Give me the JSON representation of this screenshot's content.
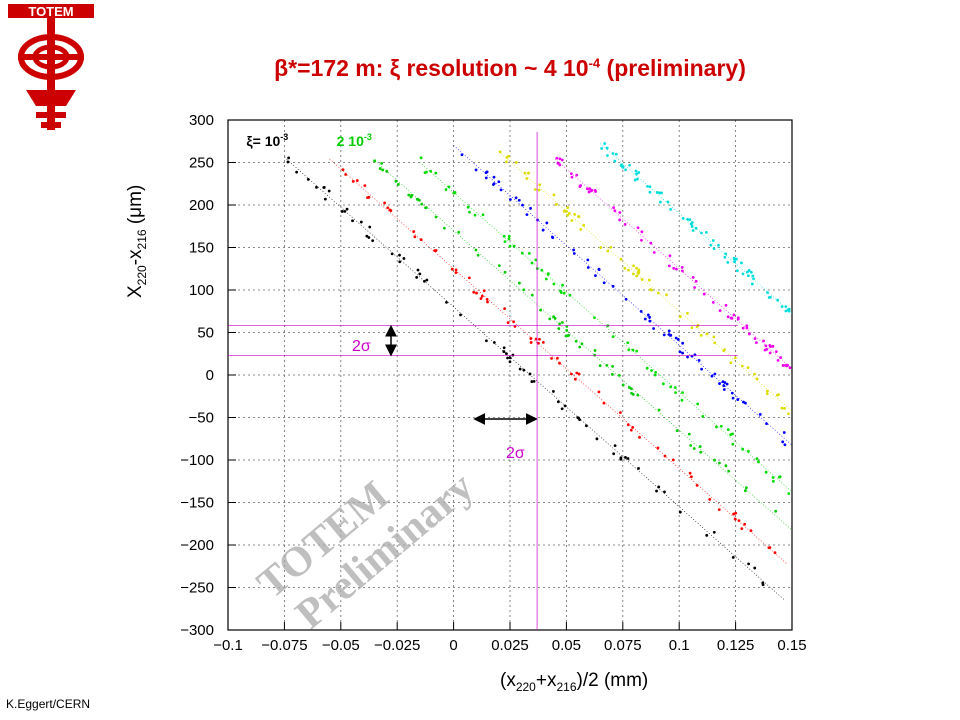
{
  "slide": {
    "title_pre": "β*=172 m: ξ resolution ~ 4 10",
    "title_exp": "-4",
    "title_post": " (preliminary)",
    "logo_text": "TOTEM",
    "credit": "K.Eggert/CERN"
  },
  "chart_data": {
    "type": "scatter",
    "xlabel_parts": [
      "(x",
      "220",
      "+x",
      "216",
      ")/2 (mm)"
    ],
    "ylabel_parts": [
      "X",
      "220",
      "-x",
      "216",
      " (μm)"
    ],
    "xlim": [
      -0.1,
      0.15
    ],
    "ylim": [
      -300,
      300
    ],
    "grid": true,
    "x_ticks": [
      -0.1,
      -0.075,
      -0.05,
      -0.025,
      0,
      0.025,
      0.05,
      0.075,
      0.1,
      0.125,
      0.15
    ],
    "x_tick_labels": [
      "−0.1",
      "−0.075",
      "−0.05",
      "−0.025",
      "0",
      "0.025",
      "0.05",
      "0.075",
      "0.1",
      "0.125",
      "0.15"
    ],
    "y_ticks": [
      -300,
      -250,
      -200,
      -150,
      -100,
      -50,
      0,
      50,
      100,
      150,
      200,
      250,
      300
    ],
    "y_tick_labels": [
      "−300",
      "−250",
      "−200",
      "−150",
      "−100",
      "−50",
      "0",
      "50",
      "100",
      "150",
      "200",
      "250",
      "300"
    ],
    "slope_um_per_mm": -2350,
    "series": [
      {
        "label": "ξ= 10",
        "label_exp": "-3",
        "color": "#000000",
        "intercept_um": 80,
        "x_range": [
          -0.075,
          0.147
        ]
      },
      {
        "color": "#ff0000",
        "intercept_um": 125,
        "x_range": [
          -0.055,
          0.148
        ]
      },
      {
        "label": "2 10",
        "label_exp": "-3",
        "color": "#00cc00",
        "intercept_um": 170,
        "x_range": [
          -0.035,
          0.15
        ]
      },
      {
        "color": "#00dd00",
        "intercept_um": 215,
        "x_range": [
          -0.015,
          0.15
        ]
      },
      {
        "color": "#0000ff",
        "intercept_um": 270,
        "x_range": [
          0.0,
          0.15
        ]
      },
      {
        "color": "#dddd00",
        "intercept_um": 310,
        "x_range": [
          0.02,
          0.15
        ]
      },
      {
        "color": "#ee00ee",
        "intercept_um": 360,
        "x_range": [
          0.045,
          0.15
        ]
      },
      {
        "color": "#00dddd",
        "intercept_um": 425,
        "x_range": [
          0.065,
          0.15
        ]
      }
    ],
    "annotations": {
      "sigma_label": "2σ",
      "horizontal_lines_y": [
        58,
        23
      ],
      "vertical_line_x": 0.037,
      "horizontal_arrow_x": [
        0.01,
        0.036
      ],
      "vertical_arrow_y": [
        58,
        23
      ]
    },
    "watermark_lines": [
      "TOTEM",
      "Preliminary"
    ]
  }
}
